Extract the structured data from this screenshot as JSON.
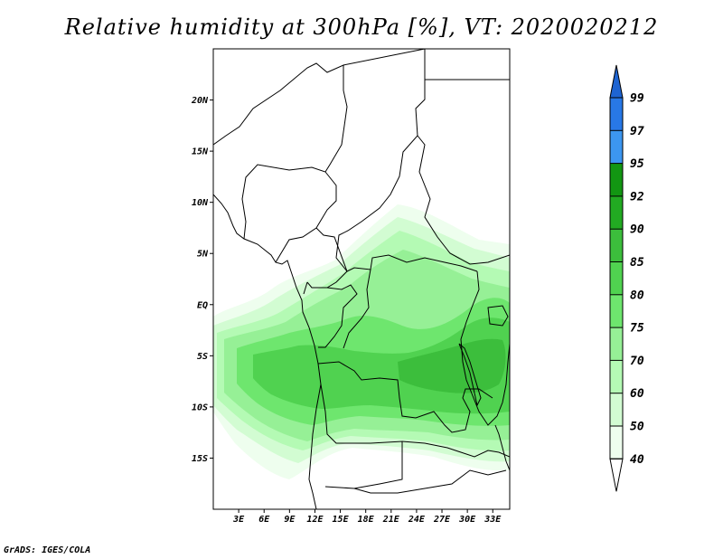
{
  "title": "Relative humidity at 300hPa [%], VT: 2020020212",
  "credit": "GrADS: IGES/COLA",
  "map": {
    "lat_labels": [
      "20N",
      "15N",
      "10N",
      "5N",
      "EQ",
      "5S",
      "10S",
      "15S"
    ],
    "lat_values": [
      20,
      15,
      10,
      5,
      0,
      -5,
      -10,
      -15
    ],
    "lon_labels": [
      "3E",
      "6E",
      "9E",
      "12E",
      "15E",
      "18E",
      "21E",
      "24E",
      "27E",
      "30E",
      "33E"
    ],
    "lon_values": [
      3,
      6,
      9,
      12,
      15,
      18,
      21,
      24,
      27,
      30,
      33
    ],
    "extent": {
      "lon_min": 0,
      "lon_max": 35,
      "lat_min": -20,
      "lat_max": 25
    }
  },
  "colorbar": {
    "labels": [
      "99",
      "97",
      "95",
      "92",
      "90",
      "85",
      "80",
      "75",
      "70",
      "60",
      "50",
      "40"
    ],
    "colors": [
      "#1e64d2",
      "#2878e6",
      "#3c96f0",
      "#129612",
      "#22aa22",
      "#3cbe3c",
      "#50d250",
      "#6ee66e",
      "#96f096",
      "#b4fab4",
      "#d2fcd2",
      "#eefeee"
    ],
    "top_arrow_color": "#1e64d2",
    "bottom_arrow_color": "#ffffff"
  }
}
